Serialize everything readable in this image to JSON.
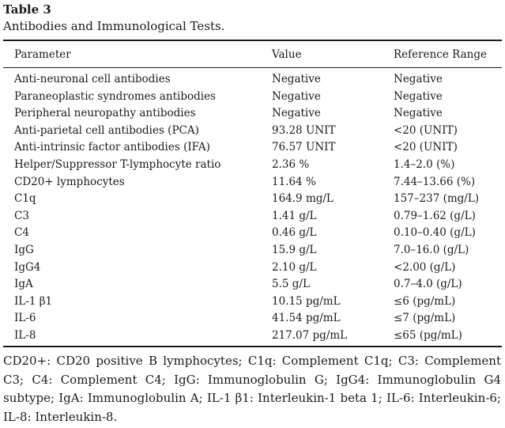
{
  "table": {
    "label": "Table 3",
    "caption": "Antibodies and Immunological Tests.",
    "headers": {
      "parameter": "Parameter",
      "value": "Value",
      "range": "Reference Range"
    },
    "rows": [
      {
        "parameter": "Anti-neuronal cell antibodies",
        "value": "Negative",
        "range": "Negative"
      },
      {
        "parameter": "Paraneoplastic syndromes antibodies",
        "value": "Negative",
        "range": "Negative"
      },
      {
        "parameter": "Peripheral neuropathy antibodies",
        "value": "Negative",
        "range": "Negative"
      },
      {
        "parameter": "Anti-parietal cell antibodies (PCA)",
        "value": "93.28 UNIT",
        "range": "<20 (UNIT)"
      },
      {
        "parameter": "Anti-intrinsic factor antibodies (IFA)",
        "value": "76.57 UNIT",
        "range": "<20 (UNIT)"
      },
      {
        "parameter": "Helper/Suppressor T-lymphocyte ratio",
        "value": "2.36 %",
        "range": "1.4–2.0 (%)"
      },
      {
        "parameter": "CD20+ lymphocytes",
        "value": "11.64 %",
        "range": "7.44–13.66 (%)"
      },
      {
        "parameter": "C1q",
        "value": "164.9 mg/L",
        "range": "157–237 (mg/L)"
      },
      {
        "parameter": "C3",
        "value": "1.41 g/L",
        "range": "0.79–1.62 (g/L)"
      },
      {
        "parameter": "C4",
        "value": "0.46 g/L",
        "range": "0.10–0.40 (g/L)"
      },
      {
        "parameter": "IgG",
        "value": "15.9 g/L",
        "range": "7.0–16.0 (g/L)"
      },
      {
        "parameter": "IgG4",
        "value": "2.10 g/L",
        "range": "<2.00 (g/L)"
      },
      {
        "parameter": "IgA",
        "value": "5.5 g/L",
        "range": "0.7–4.0 (g/L)"
      },
      {
        "parameter": "IL-1 β1",
        "value": "10.15 pg/mL",
        "range": "≤6 (pg/mL)"
      },
      {
        "parameter": "IL-6",
        "value": "41.54 pg/mL",
        "range": "≤7 (pg/mL)"
      },
      {
        "parameter": "IL-8",
        "value": "217.07 pg/mL",
        "range": "≤65 (pg/mL)"
      }
    ],
    "footnote": "CD20+: CD20 positive B lymphocytes; C1q: Complement C1q; C3: Complement C3; C4: Complement C4; IgG: Immunoglobulin G; IgG4: Immunoglobulin G4 subtype; IgA: Immunoglobulin A; IL-1 β1: Interleukin-1 beta 1; IL-6: Interleukin-6; IL-8: Interleukin-8."
  }
}
